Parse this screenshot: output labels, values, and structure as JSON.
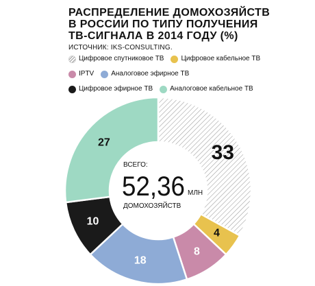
{
  "header": {
    "title": "РАСПРЕДЕЛЕНИЕ ДОМОХОЗЯЙСТВ\nВ РОССИИ ПО ТИПУ ПОЛУЧЕНИЯ\nТВ-СИГНАЛА В 2014 ГОДУ (%)",
    "source": "ИСТОЧНИК: IKS-CONSULTING."
  },
  "center": {
    "prefix": "ВСЕГО:",
    "value": "52,36",
    "unit": "МЛН",
    "suffix": "ДОМОХОЗЯЙСТВ"
  },
  "chart_data": {
    "type": "pie",
    "style": "donut",
    "title": "РАСПРЕДЕЛЕНИЕ ДОМОХОЗЯЙСТВ В РОССИИ ПО ТИПУ ПОЛУЧЕНИЯ ТВ-СИГНАЛА В 2014 ГОДУ (%)",
    "slices": [
      {
        "name": "Цифровое спутниковое ТВ",
        "value": 33,
        "label": "33",
        "color": "#ffffff",
        "pattern": "hatched",
        "text_color": "#111111",
        "label_size": "large"
      },
      {
        "name": "Цифровое кабельное ТВ",
        "value": 4,
        "label": "4",
        "color": "#e8c24e",
        "text_color": "#111111",
        "label_size": "small"
      },
      {
        "name": "IPTV",
        "value": 8,
        "label": "8",
        "color": "#c98aa9",
        "text_color": "#ffffff",
        "label_size": "small"
      },
      {
        "name": "Аналоговое эфирное ТВ",
        "value": 18,
        "label": "18",
        "color": "#8eabd6",
        "text_color": "#ffffff",
        "label_size": "small"
      },
      {
        "name": "Цифровое эфирное ТВ",
        "value": 10,
        "label": "10",
        "color": "#1a1a1a",
        "text_color": "#ffffff",
        "label_size": "small"
      },
      {
        "name": "Аналоговое кабельное ТВ",
        "value": 27,
        "label": "27",
        "color": "#9ed9c3",
        "text_color": "#111111",
        "label_size": "small"
      }
    ],
    "legend_rows": [
      [
        0,
        1
      ],
      [
        2,
        3
      ],
      [
        4,
        5
      ]
    ]
  }
}
